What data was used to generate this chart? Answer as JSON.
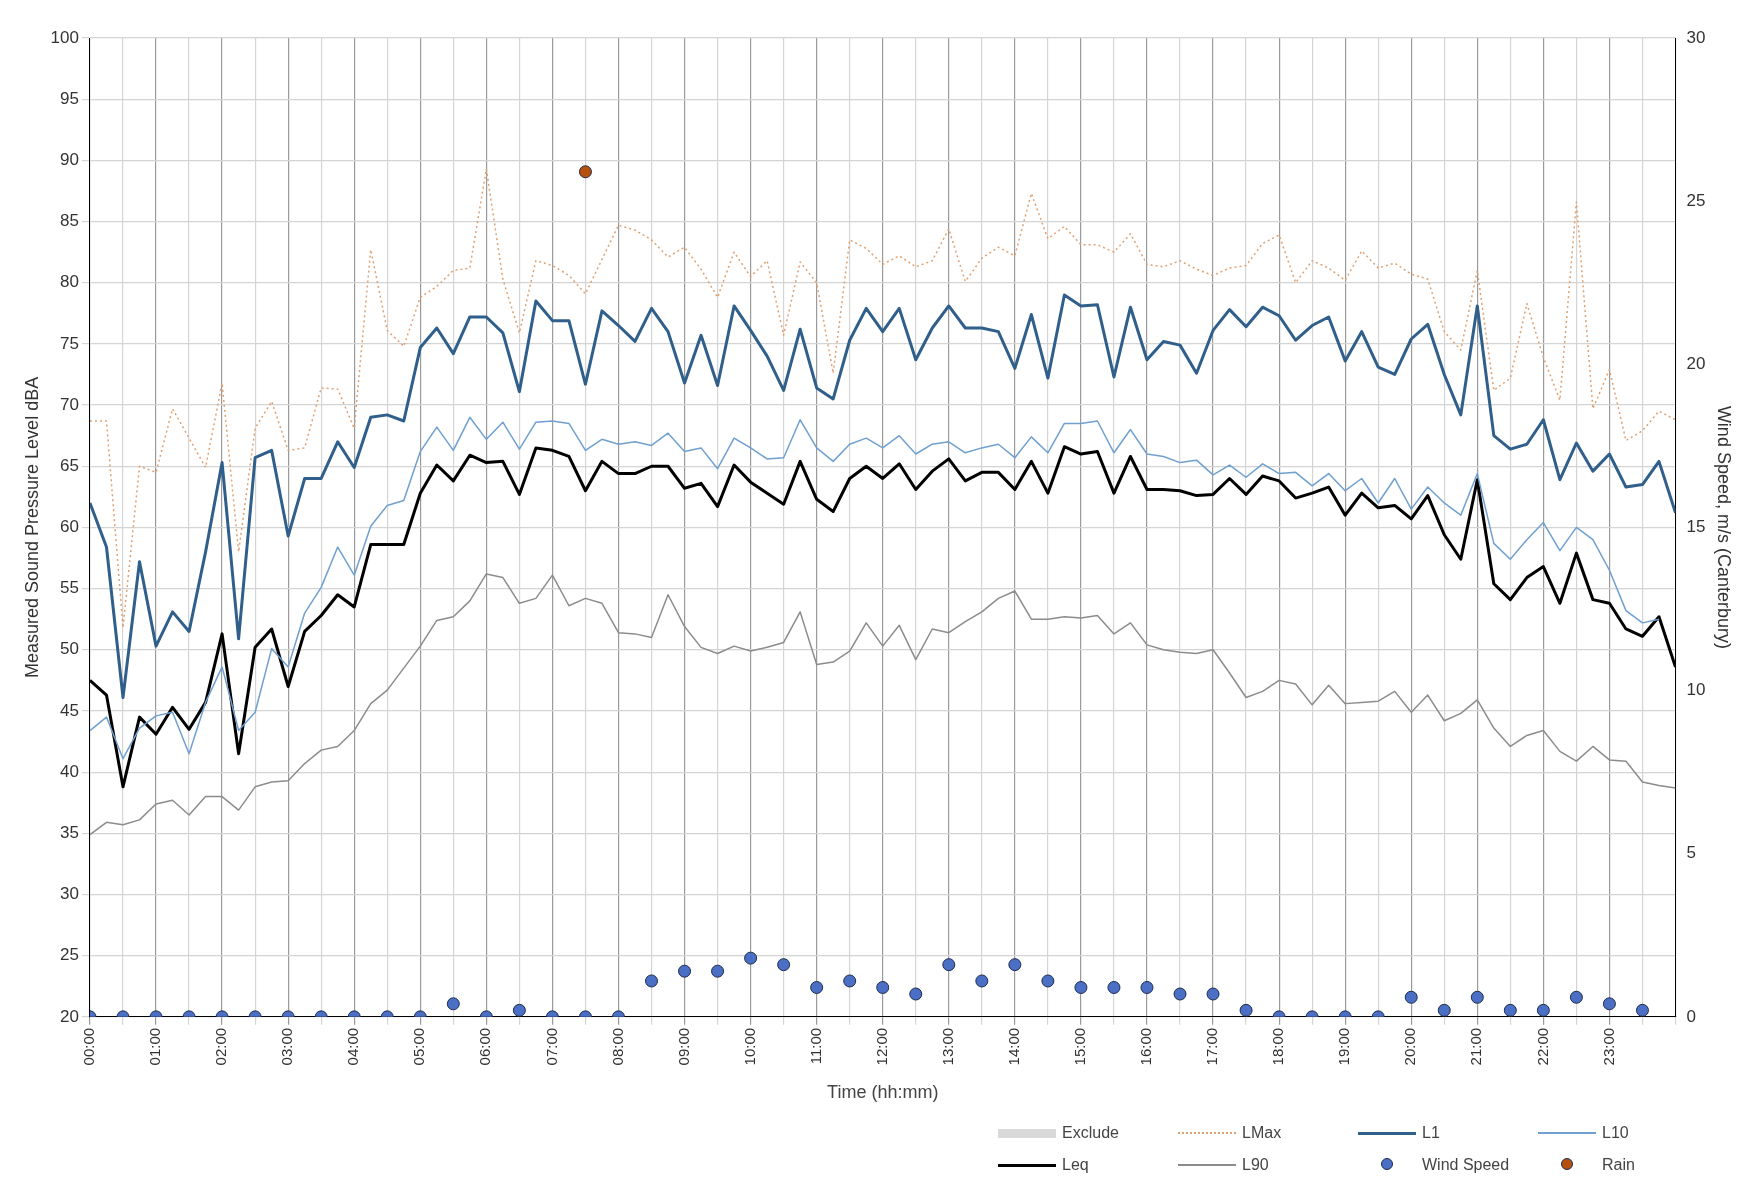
{
  "chart_data": {
    "type": "line",
    "xlabel": "Time (hh:mm)",
    "ylabel": "Measured Sound Pressure Level dBA",
    "y2label": "Wind Speed, m/s (Canterbury)",
    "x": [
      0,
      0.25,
      0.5,
      0.75,
      1,
      1.25,
      1.5,
      1.75,
      2,
      2.25,
      2.5,
      2.75,
      3,
      3.25,
      3.5,
      3.75,
      4,
      4.25,
      4.5,
      4.75,
      5,
      5.25,
      5.5,
      5.75,
      6,
      6.25,
      6.5,
      6.75,
      7,
      7.25,
      7.5,
      7.75,
      8,
      8.25,
      8.5,
      8.75,
      9,
      9.25,
      9.5,
      9.75,
      10,
      10.25,
      10.5,
      10.75,
      11,
      11.25,
      11.5,
      11.75,
      12,
      12.25,
      12.5,
      12.75,
      13,
      13.25,
      13.5,
      13.75,
      14,
      14.25,
      14.5,
      14.75,
      15,
      15.25,
      15.5,
      15.75,
      16,
      16.25,
      16.5,
      16.75,
      17,
      17.25,
      17.5,
      17.75,
      18,
      18.25,
      18.5,
      18.75,
      19,
      19.25,
      19.5,
      19.75,
      20,
      20.25,
      20.5,
      20.75,
      21,
      21.25,
      21.5,
      21.75,
      22,
      22.25,
      22.5,
      22.75,
      23,
      23.25,
      23.5,
      23.75,
      24
    ],
    "xlim": [
      0,
      24
    ],
    "xticks": [
      {
        "value": 0,
        "label": "00:00"
      },
      {
        "value": 0.5,
        "label": null
      },
      {
        "value": 1,
        "label": "01:00"
      },
      {
        "value": 1.5,
        "label": null
      },
      {
        "value": 2,
        "label": "02:00"
      },
      {
        "value": 2.5,
        "label": null
      },
      {
        "value": 3,
        "label": "03:00"
      },
      {
        "value": 3.5,
        "label": null
      },
      {
        "value": 4,
        "label": "04:00"
      },
      {
        "value": 4.5,
        "label": null
      },
      {
        "value": 5,
        "label": "05:00"
      },
      {
        "value": 5.5,
        "label": null
      },
      {
        "value": 6,
        "label": "06:00"
      },
      {
        "value": 6.5,
        "label": null
      },
      {
        "value": 7,
        "label": "07:00"
      },
      {
        "value": 7.5,
        "label": null
      },
      {
        "value": 8,
        "label": "08:00"
      },
      {
        "value": 8.5,
        "label": null
      },
      {
        "value": 9,
        "label": "09:00"
      },
      {
        "value": 9.5,
        "label": null
      },
      {
        "value": 10,
        "label": "10:00"
      },
      {
        "value": 10.5,
        "label": null
      },
      {
        "value": 11,
        "label": "11:00"
      },
      {
        "value": 11.5,
        "label": null
      },
      {
        "value": 12,
        "label": "12:00"
      },
      {
        "value": 12.5,
        "label": null
      },
      {
        "value": 13,
        "label": "13:00"
      },
      {
        "value": 13.5,
        "label": null
      },
      {
        "value": 14,
        "label": "14:00"
      },
      {
        "value": 14.5,
        "label": null
      },
      {
        "value": 15,
        "label": "15:00"
      },
      {
        "value": 15.5,
        "label": null
      },
      {
        "value": 16,
        "label": "16:00"
      },
      {
        "value": 16.5,
        "label": null
      },
      {
        "value": 17,
        "label": "17:00"
      },
      {
        "value": 17.5,
        "label": null
      },
      {
        "value": 18,
        "label": "18:00"
      },
      {
        "value": 18.5,
        "label": null
      },
      {
        "value": 19,
        "label": "19:00"
      },
      {
        "value": 19.5,
        "label": null
      },
      {
        "value": 20,
        "label": "20:00"
      },
      {
        "value": 20.5,
        "label": null
      },
      {
        "value": 21,
        "label": "21:00"
      },
      {
        "value": 21.5,
        "label": null
      },
      {
        "value": 22,
        "label": "22:00"
      },
      {
        "value": 22.5,
        "label": null
      },
      {
        "value": 23,
        "label": "23:00"
      },
      {
        "value": 23.5,
        "label": null
      },
      {
        "value": 24,
        "label": null
      }
    ],
    "ylim": [
      20,
      100
    ],
    "yticks": [
      20,
      25,
      30,
      35,
      40,
      45,
      50,
      55,
      60,
      65,
      70,
      75,
      80,
      85,
      90,
      95,
      100
    ],
    "y2lim": [
      0,
      30
    ],
    "y2ticks": [
      0,
      5,
      10,
      15,
      20,
      25,
      30
    ],
    "grid": true,
    "legend": "bottom right",
    "series": [
      {
        "name": "Exclude",
        "type": "area",
        "color": "#d9d9d9",
        "values": [
          null,
          null,
          null,
          null,
          null,
          null,
          null,
          null,
          null,
          null,
          null,
          null,
          null,
          null,
          null,
          null,
          null,
          null,
          null,
          null,
          null,
          null,
          null,
          null,
          null,
          null,
          null,
          null,
          null,
          null,
          null,
          null,
          null,
          null,
          null,
          null,
          null,
          null,
          null,
          null,
          null,
          null,
          null,
          null,
          null,
          null,
          null,
          null,
          null,
          null,
          null,
          null,
          null,
          null,
          null,
          null,
          null,
          null,
          null,
          null,
          null,
          null,
          null,
          null,
          null,
          null,
          null,
          null,
          null,
          null,
          null,
          null,
          null,
          null,
          null,
          null,
          null,
          null,
          null,
          null,
          null,
          null,
          null,
          null,
          null,
          null,
          null,
          null,
          null,
          null,
          null,
          null,
          null,
          null,
          null,
          null,
          null
        ]
      },
      {
        "name": "LMax",
        "line_style": "dotted",
        "marker": "none",
        "color": "#e0a070",
        "values": [
          68.7,
          68.7,
          51.8,
          65.0,
          64.5,
          69.7,
          67.3,
          64.9,
          71.8,
          58.0,
          68.1,
          70.3,
          66.3,
          66.5,
          71.4,
          71.3,
          68.1,
          82.7,
          76.1,
          74.8,
          78.8,
          79.7,
          81.0,
          81.2,
          89.3,
          80.3,
          75.9,
          81.8,
          81.4,
          80.6,
          79.1,
          81.9,
          84.7,
          84.3,
          83.5,
          82.1,
          82.9,
          81.1,
          78.8,
          82.5,
          80.5,
          81.8,
          75.7,
          81.7,
          80.0,
          72.6,
          83.5,
          82.8,
          81.5,
          82.2,
          81.3,
          81.8,
          84.4,
          80.1,
          82.0,
          82.9,
          82.2,
          87.3,
          83.6,
          84.6,
          83.1,
          83.1,
          82.5,
          84.0,
          81.5,
          81.3,
          81.8,
          81.1,
          80.6,
          81.2,
          81.4,
          83.2,
          83.9,
          80.0,
          81.8,
          81.2,
          80.2,
          82.6,
          81.2,
          81.6,
          80.7,
          80.3,
          76.0,
          74.5,
          81.0,
          71.2,
          72.2,
          78.3,
          73.9,
          70.4,
          86.6,
          69.7,
          72.9,
          67.1,
          67.9,
          69.5,
          68.8
        ]
      },
      {
        "name": "L1",
        "line_style": "solid",
        "marker": "none",
        "color": "#2f5f8a",
        "values": [
          62.0,
          58.4,
          46.1,
          57.2,
          50.3,
          53.1,
          51.5,
          58.0,
          65.3,
          50.9,
          65.7,
          66.3,
          59.3,
          64.0,
          64.0,
          67.0,
          64.9,
          69.0,
          69.2,
          68.7,
          74.7,
          76.3,
          74.2,
          77.2,
          77.2,
          75.9,
          71.1,
          78.5,
          76.9,
          76.9,
          71.7,
          77.7,
          76.5,
          75.2,
          77.9,
          76.0,
          71.8,
          75.7,
          71.6,
          78.1,
          76.1,
          74.0,
          71.2,
          76.2,
          71.4,
          70.5,
          75.3,
          77.9,
          76.0,
          77.9,
          73.7,
          76.3,
          78.1,
          76.3,
          76.3,
          76.0,
          73.0,
          77.4,
          72.2,
          79.0,
          78.1,
          78.2,
          72.3,
          78.0,
          73.7,
          75.2,
          74.9,
          72.6,
          76.1,
          77.8,
          76.4,
          78.0,
          77.3,
          75.3,
          76.5,
          77.2,
          73.6,
          76.0,
          73.1,
          72.5,
          75.4,
          76.6,
          72.5,
          69.2,
          78.1,
          67.5,
          66.4,
          66.8,
          68.8,
          63.9,
          66.9,
          64.6,
          66.0,
          63.3,
          63.5,
          65.4,
          61.2
        ]
      },
      {
        "name": "L10",
        "line_style": "solid",
        "marker": "none",
        "color": "#6fa0cf",
        "values": [
          43.4,
          44.5,
          41.1,
          43.6,
          44.6,
          44.9,
          41.5,
          45.7,
          48.6,
          43.4,
          44.9,
          50.1,
          48.6,
          53.0,
          55.1,
          58.4,
          56.1,
          60.1,
          61.8,
          62.2,
          66.2,
          68.2,
          66.3,
          69.0,
          67.2,
          68.6,
          66.4,
          68.6,
          68.7,
          68.5,
          66.3,
          67.2,
          66.8,
          67.0,
          66.7,
          67.7,
          66.2,
          66.5,
          64.8,
          67.3,
          66.5,
          65.6,
          65.7,
          68.8,
          66.5,
          65.4,
          66.8,
          67.3,
          66.5,
          67.5,
          66.0,
          66.8,
          67.0,
          66.1,
          66.5,
          66.8,
          65.7,
          67.4,
          66.1,
          68.5,
          68.5,
          68.7,
          66.1,
          68.0,
          66.0,
          65.8,
          65.3,
          65.5,
          64.3,
          65.1,
          64.1,
          65.2,
          64.4,
          64.5,
          63.4,
          64.4,
          63.0,
          64.0,
          62.0,
          64.0,
          61.5,
          63.3,
          62.0,
          61.0,
          64.4,
          58.7,
          57.4,
          59.0,
          60.4,
          58.1,
          60.0,
          59.0,
          56.5,
          53.2,
          52.2,
          52.5,
          null
        ]
      },
      {
        "name": "Leq",
        "line_style": "solid",
        "marker": "none",
        "color": "#000000",
        "values": [
          47.5,
          46.3,
          38.8,
          44.5,
          43.1,
          45.3,
          43.5,
          45.7,
          51.3,
          41.5,
          50.2,
          51.7,
          47.0,
          51.5,
          52.8,
          54.5,
          53.5,
          58.6,
          58.6,
          58.6,
          62.8,
          65.1,
          63.8,
          65.9,
          65.3,
          65.4,
          62.7,
          66.5,
          66.3,
          65.8,
          63.0,
          65.4,
          64.4,
          64.4,
          65.0,
          65.0,
          63.2,
          63.6,
          61.7,
          65.1,
          63.7,
          62.8,
          61.9,
          65.4,
          62.3,
          61.3,
          64.0,
          65.0,
          64.0,
          65.2,
          63.1,
          64.6,
          65.6,
          63.8,
          64.5,
          64.5,
          63.1,
          65.4,
          62.8,
          66.6,
          66.0,
          66.2,
          62.8,
          65.8,
          63.1,
          63.1,
          63.0,
          62.6,
          62.7,
          64.0,
          62.7,
          64.2,
          63.8,
          62.4,
          62.8,
          63.3,
          61.0,
          62.8,
          61.6,
          61.8,
          60.7,
          62.6,
          59.4,
          57.4,
          63.9,
          55.4,
          54.1,
          55.9,
          56.8,
          53.8,
          57.9,
          54.1,
          53.8,
          51.7,
          51.1,
          52.7,
          48.6
        ]
      },
      {
        "name": "L90",
        "line_style": "solid",
        "marker": "none",
        "color": "#8c8c8c",
        "values": [
          34.9,
          35.9,
          35.7,
          36.1,
          37.4,
          37.7,
          36.5,
          38.0,
          38.0,
          36.9,
          38.8,
          39.2,
          39.3,
          40.7,
          41.8,
          42.1,
          43.4,
          45.6,
          46.7,
          48.5,
          50.3,
          52.4,
          52.7,
          54.0,
          56.2,
          55.9,
          53.8,
          54.2,
          56.1,
          53.6,
          54.2,
          53.8,
          51.4,
          51.3,
          51.0,
          54.5,
          51.9,
          50.2,
          49.7,
          50.3,
          49.9,
          50.2,
          50.6,
          53.1,
          48.8,
          49.0,
          49.9,
          52.2,
          50.3,
          52.0,
          49.2,
          51.7,
          51.4,
          52.3,
          53.1,
          54.2,
          54.8,
          52.5,
          52.5,
          52.7,
          52.6,
          52.8,
          51.3,
          52.2,
          50.4,
          50.0,
          49.8,
          49.7,
          50.0,
          48.1,
          46.1,
          46.6,
          47.5,
          47.2,
          45.5,
          47.1,
          45.6,
          45.7,
          45.8,
          46.6,
          44.9,
          46.3,
          44.2,
          44.8,
          45.9,
          43.6,
          42.1,
          43.0,
          43.4,
          41.7,
          40.9,
          42.1,
          41.0,
          40.9,
          39.2,
          38.9,
          38.7
        ]
      },
      {
        "name": "Wind Speed",
        "type": "scatter",
        "axis": "y2",
        "marker": "circle",
        "color": "#4a6fc4",
        "x": [
          0,
          0.5,
          1,
          1.5,
          2,
          2.5,
          3,
          3.5,
          4,
          4.5,
          5,
          5.5,
          6,
          6.5,
          7,
          7.5,
          8,
          8.5,
          9,
          9.5,
          10,
          10.5,
          11,
          11.5,
          12,
          12.5,
          13,
          13.5,
          14,
          14.5,
          15,
          15.5,
          16,
          16.5,
          17,
          17.5,
          18,
          18.5,
          19,
          19.5,
          20,
          20.5,
          21,
          21.5,
          22,
          22.5,
          23,
          23.5
        ],
        "values": [
          0,
          0,
          0,
          0,
          0,
          0,
          0,
          0,
          0,
          0,
          0,
          0.4,
          0,
          0.2,
          0,
          0,
          0,
          1.1,
          1.4,
          1.4,
          1.8,
          1.6,
          0.9,
          1.1,
          0.9,
          0.7,
          1.6,
          1.1,
          1.6,
          1.1,
          0.9,
          0.9,
          0.9,
          0.7,
          0.7,
          0.2,
          0,
          0,
          0,
          0,
          0.6,
          0.2,
          0.6,
          0.2,
          0.2,
          0.6,
          0.4,
          0.2
        ]
      },
      {
        "name": "Rain",
        "type": "scatter",
        "axis": "y2",
        "marker": "circle",
        "color": "#b5500f",
        "x": [
          7.5
        ],
        "values": [
          25.9
        ]
      }
    ]
  }
}
